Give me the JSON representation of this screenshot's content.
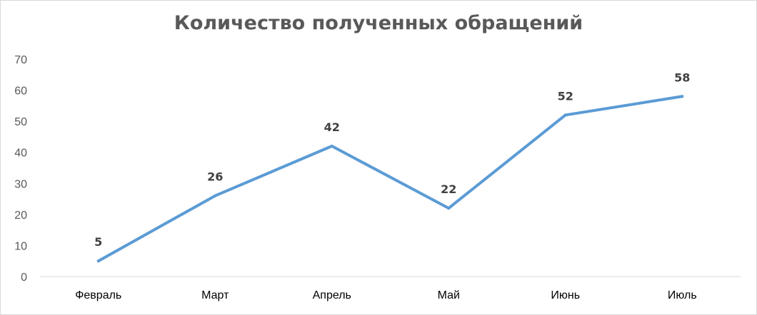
{
  "chart_data": {
    "type": "line",
    "title": "Количество полученных обращений",
    "categories": [
      "Февраль",
      "Март",
      "Апрель",
      "Май",
      "Июнь",
      "Июль"
    ],
    "series": [
      {
        "values": [
          5,
          26,
          42,
          22,
          52,
          58
        ],
        "color": "#5b9bd5"
      }
    ],
    "ylim": [
      0,
      70
    ],
    "yticks": [
      0,
      10,
      20,
      30,
      40,
      50,
      60,
      70
    ],
    "data_labels": true,
    "grid": false,
    "legend": "none"
  }
}
